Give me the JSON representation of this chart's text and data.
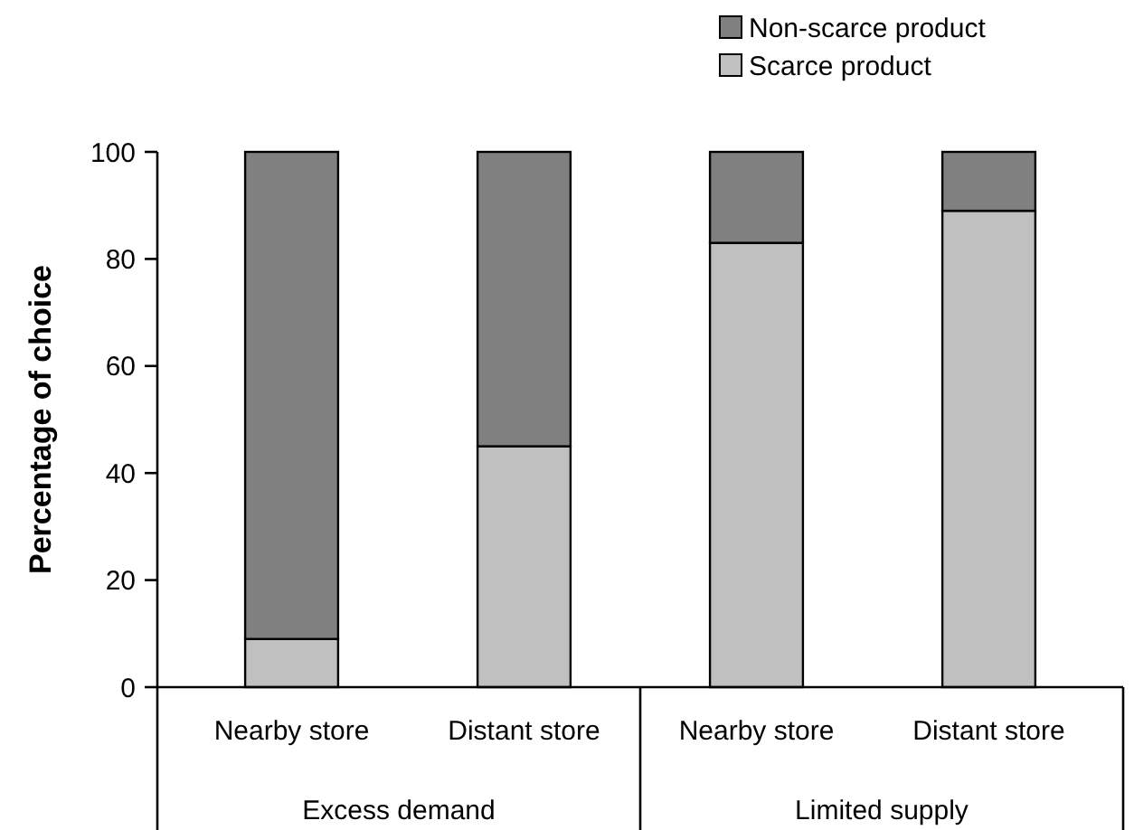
{
  "chart_data": {
    "type": "bar",
    "stacked": true,
    "ylabel": "Percentage of choice",
    "categories": [
      "Nearby store",
      "Distant store",
      "Nearby store",
      "Distant store"
    ],
    "series": [
      {
        "name": "Scarce product",
        "color": "#c0c0c0",
        "values": [
          9,
          45,
          83,
          89
        ]
      },
      {
        "name": "Non-scarce product",
        "color": "#808080",
        "values": [
          91,
          55,
          17,
          11
        ]
      }
    ],
    "ylim": [
      0,
      100
    ],
    "yticks": [
      0,
      20,
      40,
      60,
      80,
      100
    ],
    "grid": false,
    "legend": "top right",
    "annotations": [
      "Excess demand",
      "Limited supply"
    ]
  }
}
